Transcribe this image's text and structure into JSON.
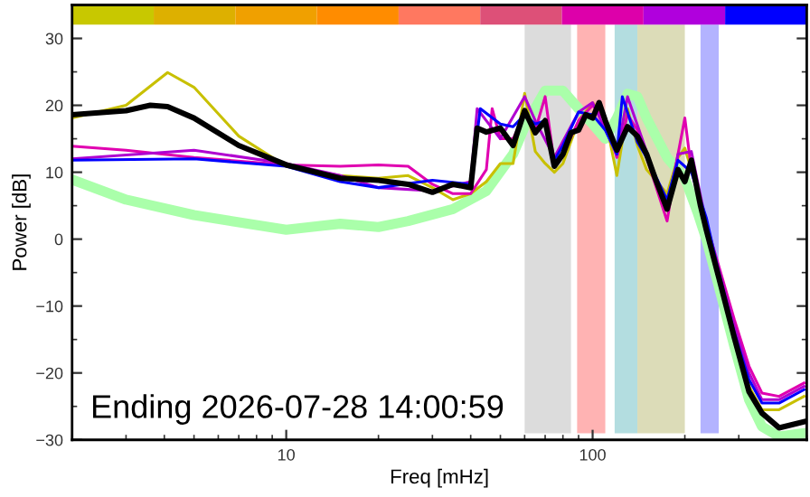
{
  "chart_data": {
    "type": "line",
    "xlabel": "Freq [mHz]",
    "ylabel": "Power [dB]",
    "log": "x",
    "xlim": [
      2,
      500
    ],
    "xticks": [
      10,
      100
    ],
    "ylim": [
      -30,
      35
    ],
    "yticks": [
      -30,
      -20,
      -10,
      0,
      10,
      20,
      30
    ],
    "grid": false,
    "annotations": [
      "Ending 2026-07-28 14:00:59"
    ],
    "bands": [
      {
        "axis": "x",
        "from": 60,
        "to": 85,
        "color": "#dcdcdc"
      },
      {
        "axis": "x",
        "from": 89,
        "to": 110,
        "color": "#ffb3b3"
      },
      {
        "axis": "x",
        "from": 118,
        "to": 140,
        "color": "#b3dde0"
      },
      {
        "axis": "x",
        "from": 140,
        "to": 200,
        "color": "#dcdcb8"
      },
      {
        "axis": "x",
        "from": 225,
        "to": 258,
        "color": "#b3b3ff"
      }
    ],
    "series": [
      {
        "color": "#aaffaa",
        "x": [
          2,
          3,
          5,
          10,
          15,
          20,
          25,
          35,
          45,
          55,
          60,
          70,
          80,
          90,
          100,
          110,
          120,
          130,
          140,
          150,
          175,
          200,
          220,
          235,
          258,
          290,
          324,
          357,
          406,
          490
        ],
        "values": [
          8.9,
          5.9,
          3.6,
          1.4,
          2.3,
          1.8,
          2.7,
          4.5,
          7.2,
          12.7,
          16.8,
          22.2,
          22.2,
          19.5,
          17.2,
          15,
          18.1,
          21.7,
          21.3,
          18.1,
          12.2,
          9.1,
          4,
          0,
          -7,
          -16,
          -24,
          -28,
          -29.5,
          -29
        ]
      },
      {
        "color": "#c8c000",
        "x": [
          2,
          3,
          4.1,
          5,
          7,
          10,
          15,
          20,
          25,
          30,
          35,
          40,
          45,
          50,
          55,
          60,
          65,
          70,
          75,
          80,
          90,
          100,
          110,
          120,
          130,
          140,
          150,
          175,
          190,
          200,
          225,
          235,
          258,
          290,
          324,
          357,
          406,
          490
        ],
        "values": [
          18.1,
          20,
          24.9,
          22.7,
          15.4,
          10.9,
          9.5,
          9.1,
          9.5,
          7.7,
          5.9,
          6.8,
          8.6,
          11.3,
          11.3,
          21.8,
          13.1,
          11.3,
          10,
          11.3,
          17.7,
          20.4,
          18.1,
          9.5,
          19.5,
          14,
          10.4,
          6.8,
          12.2,
          13.6,
          5.9,
          1.4,
          -6,
          -15,
          -22,
          -25.5,
          -25.5,
          -23.5
        ]
      },
      {
        "color": "#e000b0",
        "x": [
          2,
          3,
          5,
          10,
          15,
          20,
          25,
          30,
          35,
          40,
          45,
          47,
          50,
          55,
          60,
          65,
          70,
          75,
          80,
          90,
          100,
          110,
          120,
          130,
          140,
          150,
          175,
          190,
          200,
          210,
          235,
          258,
          290,
          324,
          357,
          406,
          490
        ],
        "values": [
          13.9,
          13.3,
          12.2,
          11.1,
          10.9,
          11.1,
          10.9,
          8.2,
          6.8,
          6.8,
          10.4,
          19.5,
          15,
          15,
          18.6,
          16.3,
          21.3,
          11.3,
          12.7,
          17.7,
          20,
          17.7,
          12.2,
          18.6,
          16.3,
          12.2,
          2.7,
          12.7,
          18.1,
          10.4,
          2.3,
          -4,
          -12,
          -19,
          -23,
          -23.5,
          -21.5
        ]
      },
      {
        "color": "#b000d0",
        "x": [
          2,
          5,
          10,
          15,
          20,
          30,
          40,
          42,
          45,
          50,
          60,
          65,
          75,
          90,
          100,
          120,
          130,
          150,
          175,
          190,
          210,
          235,
          258,
          290,
          324,
          357,
          406,
          490
        ],
        "values": [
          12,
          13.3,
          11.3,
          9.5,
          7.7,
          7.2,
          8.6,
          19.5,
          17.7,
          15,
          21.3,
          17.7,
          12.2,
          19,
          20.4,
          12.7,
          21.3,
          13.1,
          4.5,
          12.7,
          13.1,
          2.3,
          -4.5,
          -13,
          -20,
          -24,
          -24,
          -22
        ]
      },
      {
        "color": "#0000ff",
        "x": [
          2,
          5,
          10,
          15,
          20,
          30,
          40,
          43,
          50,
          55,
          60,
          65,
          70,
          75,
          80,
          90,
          100,
          110,
          120,
          125,
          140,
          150,
          175,
          190,
          210,
          235,
          258,
          290,
          324,
          357,
          406,
          490
        ],
        "values": [
          11.8,
          12,
          10.9,
          8.6,
          7.7,
          8.8,
          8.2,
          19.5,
          17.2,
          16.8,
          18.6,
          17.2,
          17.7,
          11.8,
          14,
          19,
          18.6,
          16.3,
          12.7,
          21.3,
          14.5,
          12.2,
          5.9,
          11.8,
          10,
          3.2,
          -5,
          -14,
          -21,
          -24.5,
          -24.5,
          -22.5
        ]
      },
      {
        "color": "#000000",
        "x": [
          2,
          3,
          3.6,
          4.1,
          5,
          7,
          10,
          15,
          20,
          25,
          30,
          35,
          40,
          42,
          45,
          50,
          55,
          60,
          65,
          70,
          75,
          80,
          85,
          90,
          95,
          100,
          105,
          110,
          120,
          130,
          140,
          150,
          160,
          175,
          190,
          200,
          210,
          225,
          235,
          258,
          290,
          324,
          357,
          406,
          490
        ],
        "values": [
          18.6,
          19.2,
          20,
          19.8,
          18.1,
          14,
          11.1,
          9.1,
          8.8,
          8.2,
          7,
          8.2,
          7.7,
          16.6,
          16,
          16.6,
          14,
          19.2,
          15.9,
          17.7,
          10.9,
          12.7,
          15.9,
          16.3,
          18.6,
          18.1,
          20.4,
          17.7,
          13.3,
          16.8,
          15.4,
          12.7,
          9.1,
          4.5,
          10.4,
          8.6,
          11.8,
          5,
          1.4,
          -5.7,
          -14.7,
          -22.8,
          -26,
          -28.2,
          -27.3
        ]
      }
    ]
  }
}
